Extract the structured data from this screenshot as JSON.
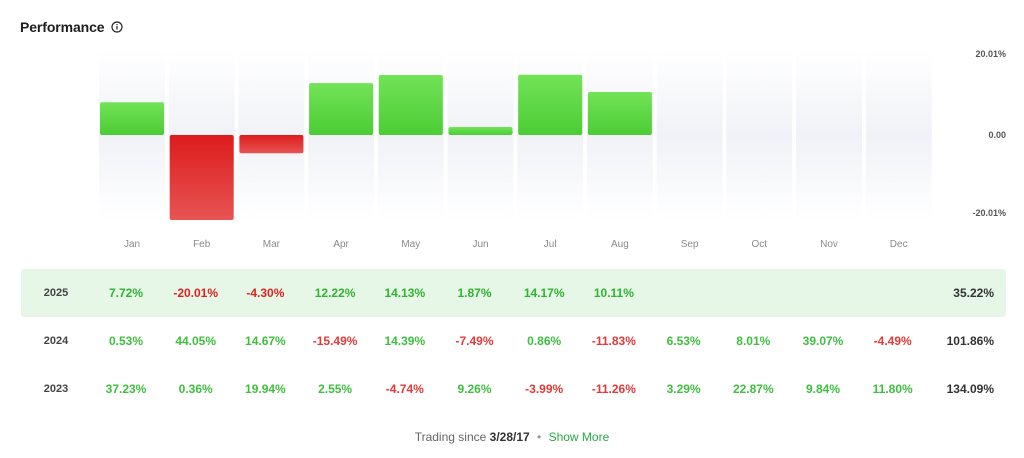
{
  "header": {
    "title": "Performance"
  },
  "chart_data": {
    "type": "bar",
    "title": "",
    "year": "2025",
    "categories": [
      "Jan",
      "Feb",
      "Mar",
      "Apr",
      "May",
      "Jun",
      "Jul",
      "Aug",
      "Sep",
      "Oct",
      "Nov",
      "Dec"
    ],
    "values": [
      7.72,
      -20.01,
      -4.3,
      12.22,
      14.13,
      1.87,
      14.17,
      10.11,
      null,
      null,
      null,
      null
    ],
    "ylim": [
      -20.01,
      20.01
    ],
    "y_tick_labels": [
      "20.01%",
      "0.00",
      "-20.01%"
    ],
    "xlabel": "",
    "ylabel": "",
    "colors": {
      "positive": "#5ed64a",
      "negative": "#e02a2a",
      "track": "#f3f4f8"
    }
  },
  "table": {
    "rows": [
      {
        "year": "2025",
        "months": [
          "7.72%",
          "-20.01%",
          "-4.30%",
          "12.22%",
          "14.13%",
          "1.87%",
          "14.17%",
          "10.11%",
          "",
          "",
          "",
          ""
        ],
        "total": "35.22%"
      },
      {
        "year": "2024",
        "months": [
          "0.53%",
          "44.05%",
          "14.67%",
          "-15.49%",
          "14.39%",
          "-7.49%",
          "0.86%",
          "-11.83%",
          "6.53%",
          "8.01%",
          "39.07%",
          "-4.49%"
        ],
        "total": "101.86%"
      },
      {
        "year": "2023",
        "months": [
          "37.23%",
          "0.36%",
          "19.94%",
          "2.55%",
          "-4.74%",
          "9.26%",
          "-3.99%",
          "-11.26%",
          "3.29%",
          "22.87%",
          "9.84%",
          "11.80%"
        ],
        "total": "134.09%"
      }
    ]
  },
  "footer": {
    "prefix": "Trading since",
    "date": "3/28/17",
    "dot": "•",
    "show_more": "Show More"
  }
}
